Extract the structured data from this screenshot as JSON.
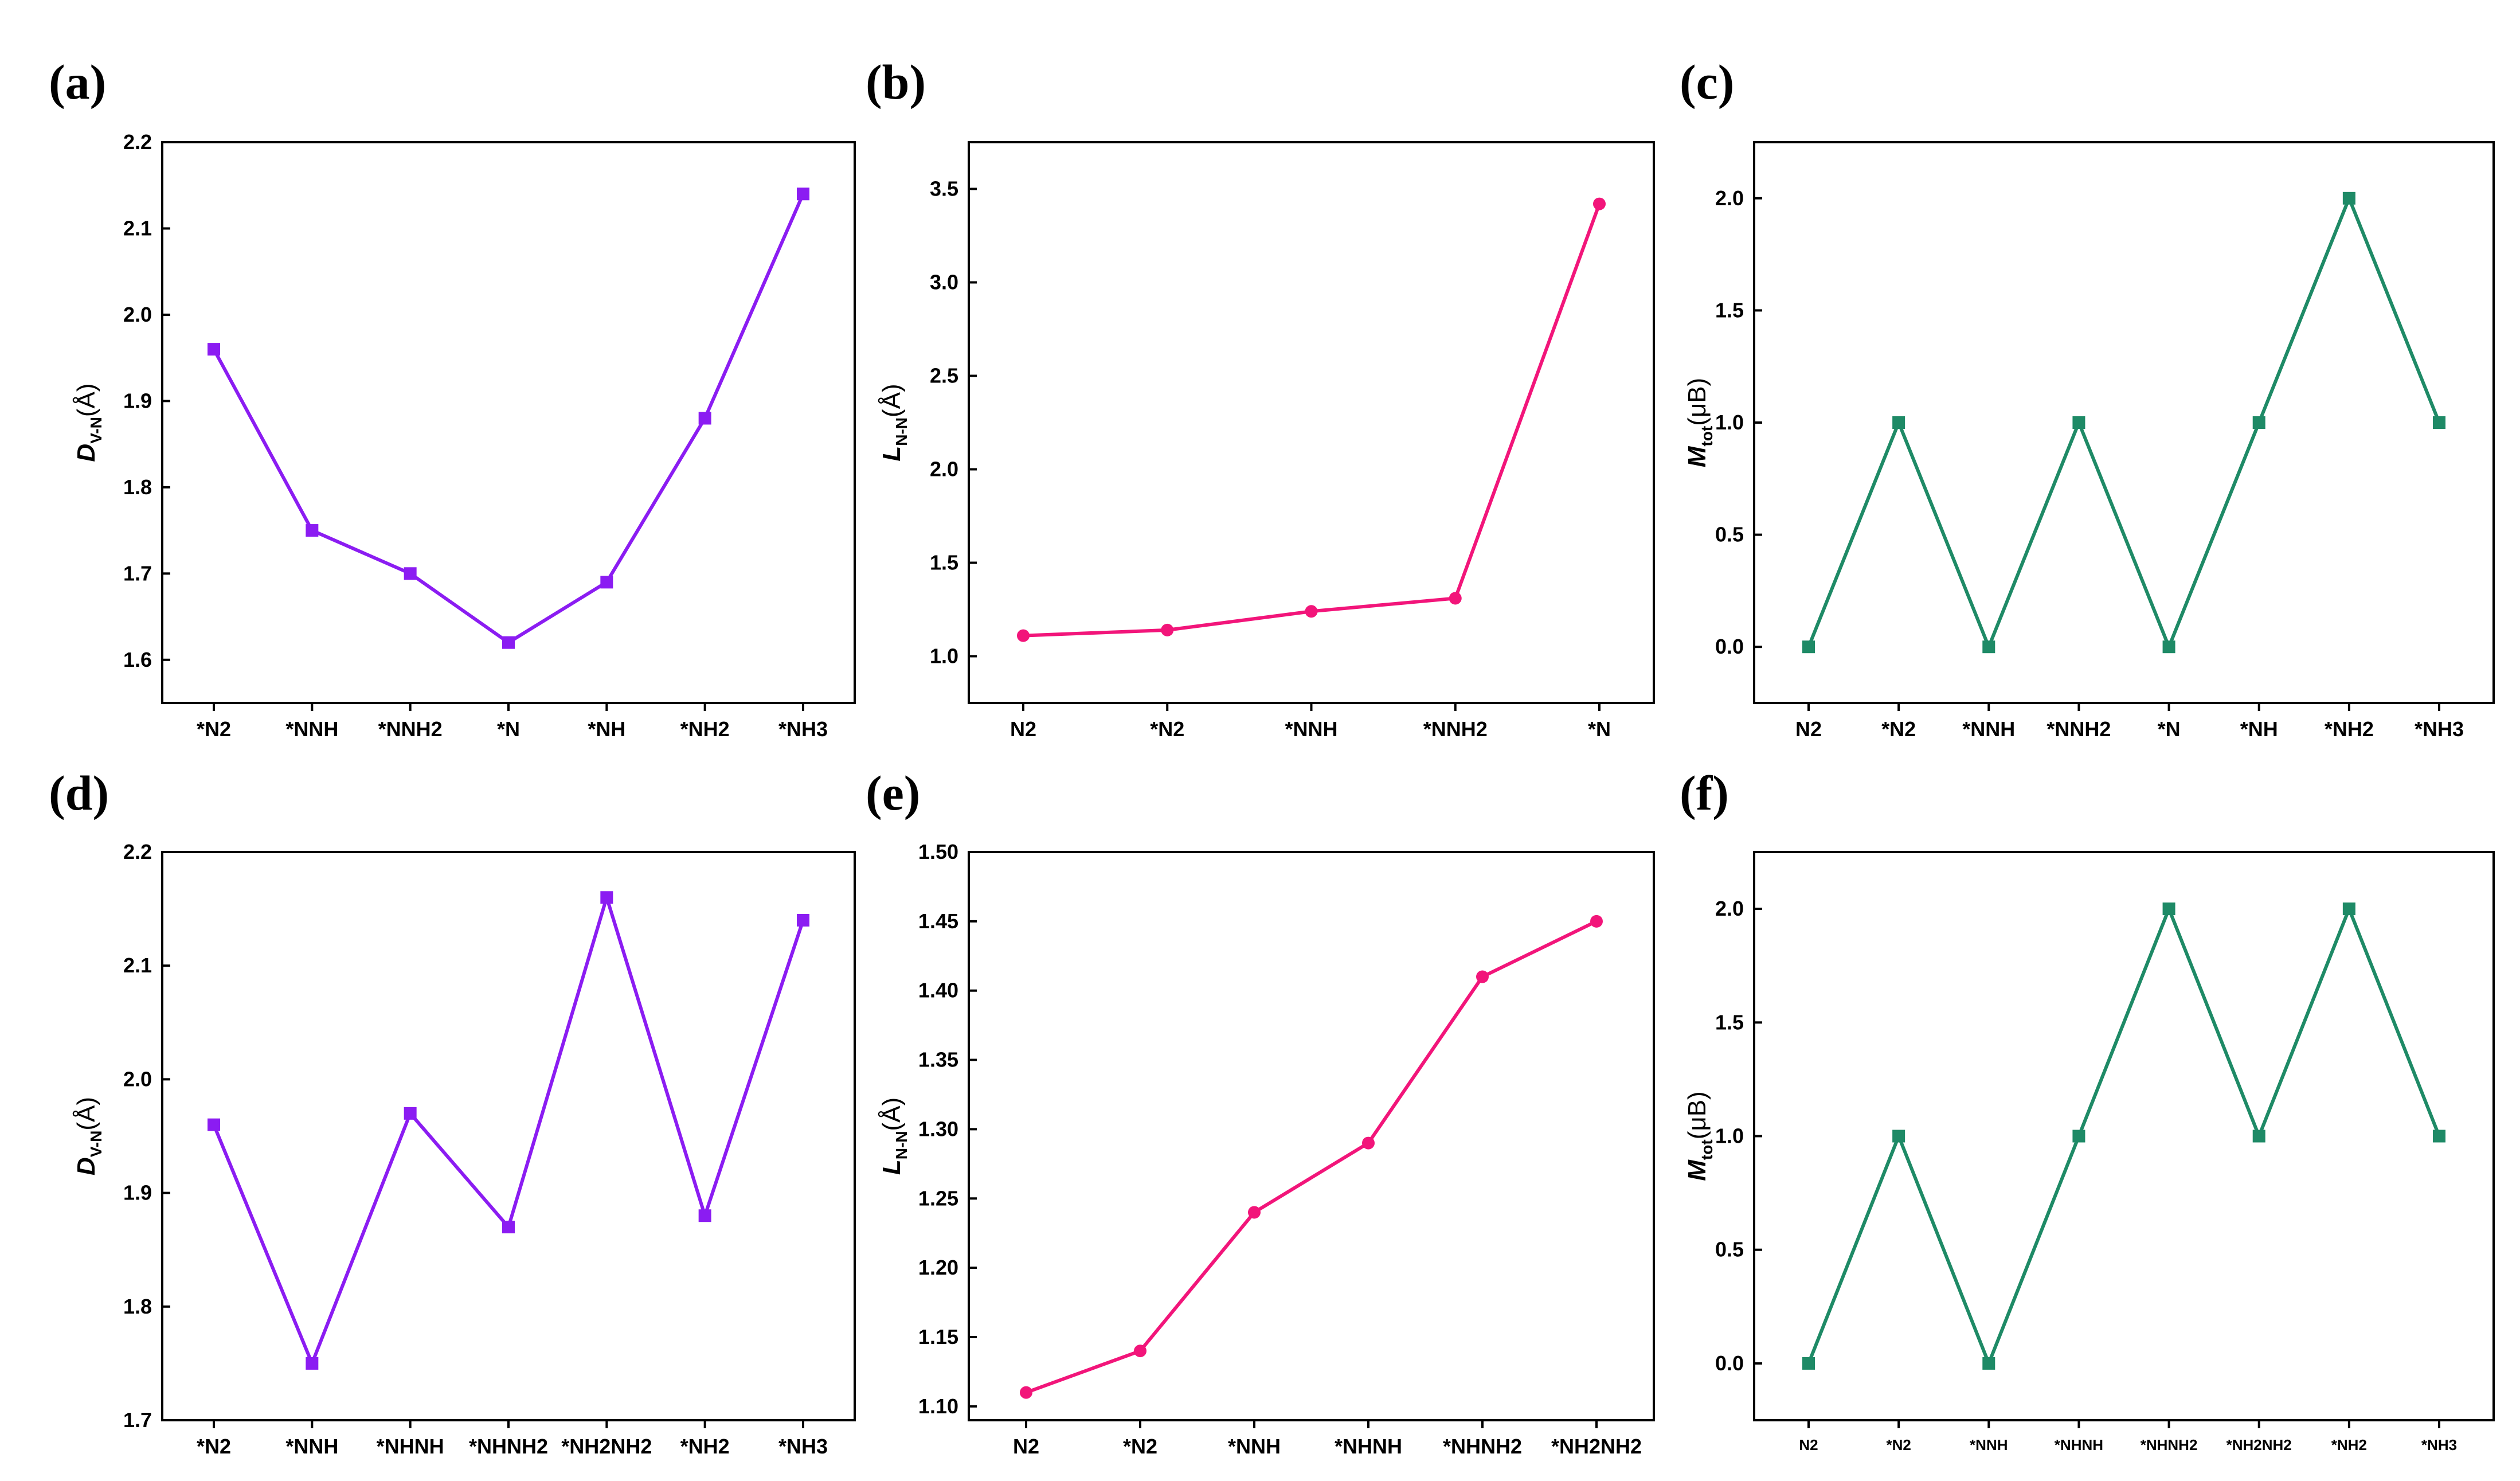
{
  "chart_data": [
    {
      "id": "a",
      "panel_label": "(a)",
      "type": "line",
      "ylabel": {
        "main": "D",
        "sub": "V-N",
        "unit": "(Å)"
      },
      "categories": [
        "*N2",
        "*NNH",
        "*NNH2",
        "*N",
        "*NH",
        "*NH2",
        "*NH3"
      ],
      "values": [
        1.96,
        1.75,
        1.7,
        1.62,
        1.69,
        1.88,
        2.14
      ],
      "ylim": [
        1.55,
        2.2
      ],
      "yticks": [
        1.6,
        1.7,
        1.8,
        1.9,
        2.0,
        2.1,
        2.2
      ],
      "ytick_labels": [
        "1.6",
        "1.7",
        "1.8",
        "1.9",
        "2.0",
        "2.1",
        "2.2"
      ],
      "color": "#8b1cf2",
      "marker": "square"
    },
    {
      "id": "b",
      "panel_label": "(b)",
      "type": "line",
      "ylabel": {
        "main": "L",
        "sub": "N-N",
        "unit": "(Å)"
      },
      "categories": [
        "N2",
        "*N2",
        "*NNH",
        "*NNH2",
        "*N"
      ],
      "values": [
        1.11,
        1.14,
        1.24,
        1.31,
        3.42
      ],
      "ylim": [
        0.75,
        3.75
      ],
      "yticks": [
        1.0,
        1.5,
        2.0,
        2.5,
        3.0,
        3.5
      ],
      "ytick_labels": [
        "1.0",
        "1.5",
        "2.0",
        "2.5",
        "3.0",
        "3.5"
      ],
      "color": "#f2157a",
      "marker": "circle"
    },
    {
      "id": "c",
      "panel_label": "(c)",
      "type": "line",
      "ylabel": {
        "main": "M",
        "sub": "tot",
        "unit": "(μB)"
      },
      "categories": [
        "N2",
        "*N2",
        "*NNH",
        "*NNH2",
        "*N",
        "*NH",
        "*NH2",
        "*NH3"
      ],
      "values": [
        0,
        1,
        0,
        1,
        0,
        1,
        2,
        1
      ],
      "ylim": [
        -0.25,
        2.25
      ],
      "yticks": [
        0.0,
        0.5,
        1.0,
        1.5,
        2.0
      ],
      "ytick_labels": [
        "0.0",
        "0.5",
        "1.0",
        "1.5",
        "2.0"
      ],
      "color": "#1e8a66",
      "marker": "square"
    },
    {
      "id": "d",
      "panel_label": "(d)",
      "type": "line",
      "ylabel": {
        "main": "D",
        "sub": "V-N",
        "unit": "(Å)"
      },
      "categories": [
        "*N2",
        "*NNH",
        "*NHNH",
        "*NHNH2",
        "*NH2NH2",
        "*NH2",
        "*NH3"
      ],
      "values": [
        1.96,
        1.75,
        1.97,
        1.87,
        2.16,
        1.88,
        2.14
      ],
      "ylim": [
        1.7,
        2.2
      ],
      "yticks": [
        1.7,
        1.8,
        1.9,
        2.0,
        2.1,
        2.2
      ],
      "ytick_labels": [
        "1.7",
        "1.8",
        "1.9",
        "2.0",
        "2.1",
        "2.2"
      ],
      "color": "#8b1cf2",
      "marker": "square"
    },
    {
      "id": "e",
      "panel_label": "(e)",
      "type": "line",
      "ylabel": {
        "main": "L",
        "sub": "N-N",
        "unit": "(Å)"
      },
      "categories": [
        "N2",
        "*N2",
        "*NNH",
        "*NHNH",
        "*NHNH2",
        "*NH2NH2"
      ],
      "values": [
        1.11,
        1.14,
        1.24,
        1.29,
        1.41,
        1.45
      ],
      "ylim": [
        1.09,
        1.5
      ],
      "yticks": [
        1.1,
        1.15,
        1.2,
        1.25,
        1.3,
        1.35,
        1.4,
        1.45,
        1.5
      ],
      "ytick_labels": [
        "1.10",
        "1.15",
        "1.20",
        "1.25",
        "1.30",
        "1.35",
        "1.40",
        "1.45",
        "1.50"
      ],
      "color": "#f2157a",
      "marker": "circle"
    },
    {
      "id": "f",
      "panel_label": "(f)",
      "type": "line",
      "ylabel": {
        "main": "M",
        "sub": "tot",
        "unit": "(μB)"
      },
      "categories": [
        "N2",
        "*N2",
        "*NNH",
        "*NHNH",
        "*NHNH2",
        "*NH2NH2",
        "*NH2",
        "*NH3"
      ],
      "values": [
        0,
        1,
        0,
        1,
        2,
        1,
        2,
        1
      ],
      "ylim": [
        -0.25,
        2.25
      ],
      "yticks": [
        0.0,
        0.5,
        1.0,
        1.5,
        2.0
      ],
      "ytick_labels": [
        "0.0",
        "0.5",
        "1.0",
        "1.5",
        "2.0"
      ],
      "color": "#1e8a66",
      "marker": "square"
    }
  ]
}
